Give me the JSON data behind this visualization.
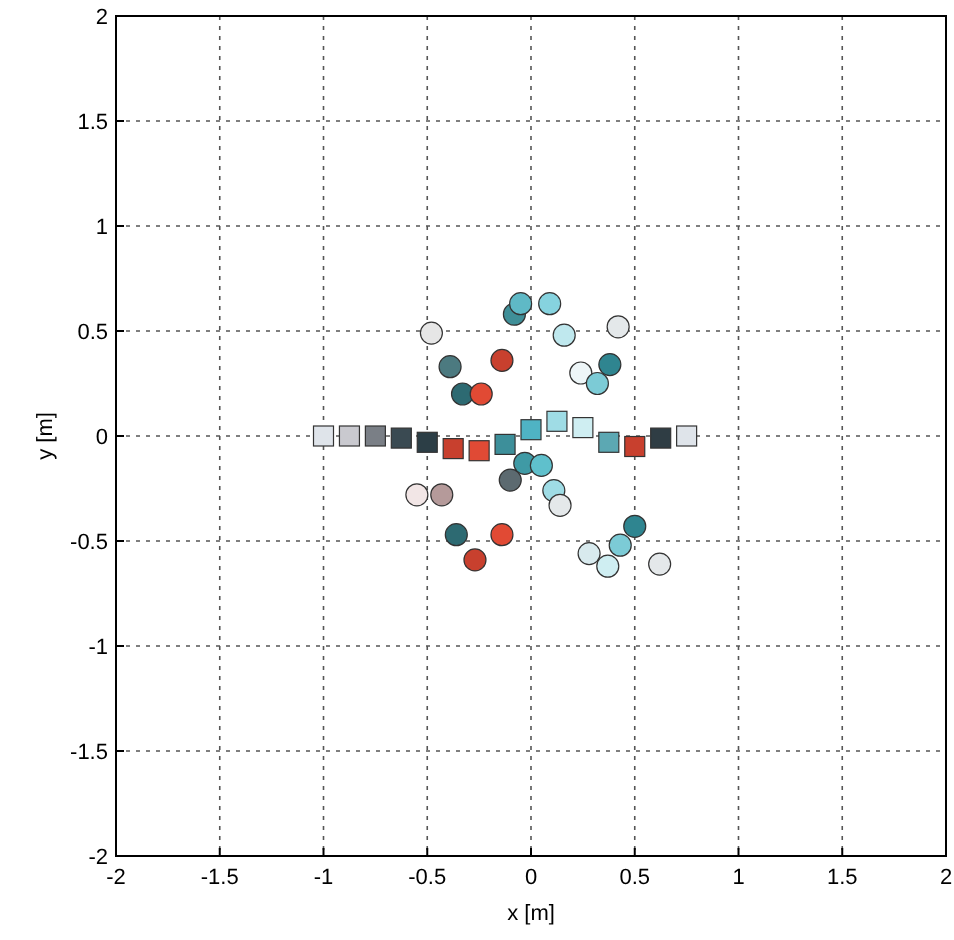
{
  "chart_data": {
    "type": "scatter",
    "xlabel": "x [m]",
    "ylabel": "y [m]",
    "xlim": [
      -2,
      2
    ],
    "ylim": [
      -2,
      2
    ],
    "xticks": [
      -2,
      -1.5,
      -1,
      -0.5,
      0,
      0.5,
      1,
      1.5,
      2
    ],
    "yticks": [
      -2,
      -1.5,
      -1,
      -0.5,
      0,
      0.5,
      1,
      1.5,
      2
    ],
    "grid": true,
    "series": [
      {
        "marker": "square",
        "x": [
          -1,
          -0.875,
          -0.75,
          -0.625,
          -0.5,
          -0.375,
          -0.25,
          -0.125,
          0,
          0.125,
          0.25,
          0.375,
          0.5,
          0.625,
          0.75
        ],
        "values": [
          0,
          0,
          0,
          -0.01,
          -0.03,
          -0.06,
          -0.07,
          -0.04,
          0.03,
          0.07,
          0.04,
          -0.03,
          -0.05,
          -0.01,
          0
        ],
        "colors": [
          "#dfe4ea",
          "#c9c9cf",
          "#7a7f86",
          "#3a4a52",
          "#2c3e46",
          "#c8402e",
          "#e04a35",
          "#3d8f9a",
          "#4fb3c4",
          "#9fdce5",
          "#cfeef2",
          "#5ca8b3",
          "#c8402e",
          "#2f3d44",
          "#dfe4ea"
        ]
      },
      {
        "marker": "circle",
        "x": [
          -0.48,
          -0.39,
          -0.33,
          -0.24,
          -0.14,
          -0.08,
          -0.05,
          0.09,
          0.16,
          0.24,
          0.32,
          0.38,
          0.42
        ],
        "values": [
          0.49,
          0.33,
          0.2,
          0.2,
          0.36,
          0.58,
          0.63,
          0.63,
          0.48,
          0.3,
          0.25,
          0.34,
          0.52
        ],
        "colors": [
          "#e6e6e6",
          "#4c7a80",
          "#2d6a72",
          "#e14a34",
          "#c8402e",
          "#3f8f98",
          "#5fb9c6",
          "#86d3df",
          "#bfe8ee",
          "#eef6f8",
          "#7ccbd6",
          "#2f8590",
          "#e4e8ea"
        ]
      },
      {
        "marker": "circle",
        "x": [
          -0.55,
          -0.43,
          -0.36,
          -0.27,
          -0.14,
          -0.1,
          -0.03,
          0.05,
          0.11,
          0.14,
          0.28,
          0.37,
          0.43,
          0.5,
          0.62
        ],
        "values": [
          -0.28,
          -0.28,
          -0.47,
          -0.59,
          -0.47,
          -0.21,
          -0.13,
          -0.14,
          -0.26,
          -0.33,
          -0.56,
          -0.62,
          -0.52,
          -0.43,
          -0.61
        ],
        "colors": [
          "#f2e6e6",
          "#b59a9a",
          "#2d6a72",
          "#c8402e",
          "#e14a34",
          "#5c6a70",
          "#3f9aa5",
          "#5fc0cc",
          "#9fdce5",
          "#e4e8ea",
          "#d8eaee",
          "#cfeef2",
          "#7ccbd6",
          "#2f8590",
          "#e4e8ea"
        ]
      }
    ]
  }
}
